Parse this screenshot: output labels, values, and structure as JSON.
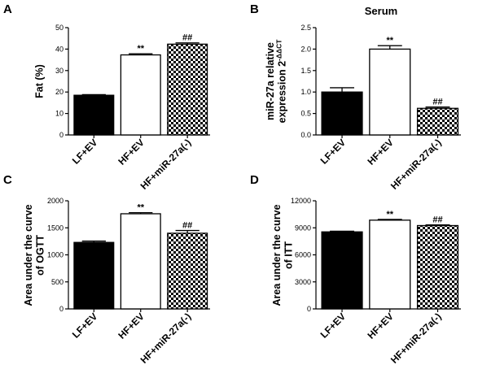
{
  "colors": {
    "ink": "#000000",
    "filled": "#000000",
    "open": "#ffffff",
    "checker": "#000000"
  },
  "chart_data": [
    {
      "type": "bar",
      "panel_letter": "A",
      "title": "",
      "ylabel": [
        "Fat (%)"
      ],
      "categories": [
        "LF+EV",
        "HF+EV",
        "HF+miR-27a(-)"
      ],
      "fills": [
        "solid",
        "open",
        "checker"
      ],
      "values": [
        18.5,
        37.3,
        42.3
      ],
      "errors": [
        0.3,
        0.5,
        0.6
      ],
      "annotations": [
        "",
        "**",
        "##"
      ],
      "ylim": [
        0,
        50
      ],
      "yticks": [
        "0",
        "10",
        "20",
        "30",
        "40",
        "50"
      ],
      "ytick_values": [
        0,
        10,
        20,
        30,
        40,
        50
      ]
    },
    {
      "type": "bar",
      "panel_letter": "B",
      "title": "Serum",
      "ylabel": [
        "miR-27a relative",
        "expression 2-ΔΔCT"
      ],
      "categories": [
        "LF+EV",
        "HF+EV",
        "HF+miR-27a(-)"
      ],
      "fills": [
        "solid",
        "open",
        "checker"
      ],
      "values": [
        1.0,
        2.0,
        0.62
      ],
      "errors": [
        0.1,
        0.08,
        0.03
      ],
      "annotations": [
        "",
        "**",
        "##"
      ],
      "ylim": [
        0,
        2.5
      ],
      "yticks": [
        "0.0",
        "0.5",
        "1.0",
        "1.5",
        "2.0",
        "2.5"
      ],
      "ytick_values": [
        0,
        0.5,
        1.0,
        1.5,
        2.0,
        2.5
      ]
    },
    {
      "type": "bar",
      "panel_letter": "C",
      "title": "",
      "ylabel": [
        "Area under the curve",
        "of OGTT"
      ],
      "categories": [
        "LF+EV",
        "HF+EV",
        "HF+miR-27a(-)"
      ],
      "fills": [
        "solid",
        "open",
        "checker"
      ],
      "values": [
        1230,
        1760,
        1400
      ],
      "errors": [
        25,
        20,
        50
      ],
      "annotations": [
        "",
        "**",
        "##"
      ],
      "ylim": [
        0,
        2000
      ],
      "yticks": [
        "0",
        "500",
        "1000",
        "1500",
        "2000"
      ],
      "ytick_values": [
        0,
        500,
        1000,
        1500,
        2000
      ]
    },
    {
      "type": "bar",
      "panel_letter": "D",
      "title": "",
      "ylabel": [
        "Area under the curve",
        "of ITT"
      ],
      "categories": [
        "LF+EV",
        "HF+EV",
        "HF+miR-27a(-)"
      ],
      "fills": [
        "solid",
        "open",
        "checker"
      ],
      "values": [
        8550,
        9850,
        9250
      ],
      "errors": [
        80,
        80,
        70
      ],
      "annotations": [
        "",
        "**",
        "##"
      ],
      "ylim": [
        0,
        12000
      ],
      "yticks": [
        "0",
        "3000",
        "6000",
        "9000",
        "12000"
      ],
      "ytick_values": [
        0,
        3000,
        6000,
        9000,
        12000
      ]
    }
  ]
}
